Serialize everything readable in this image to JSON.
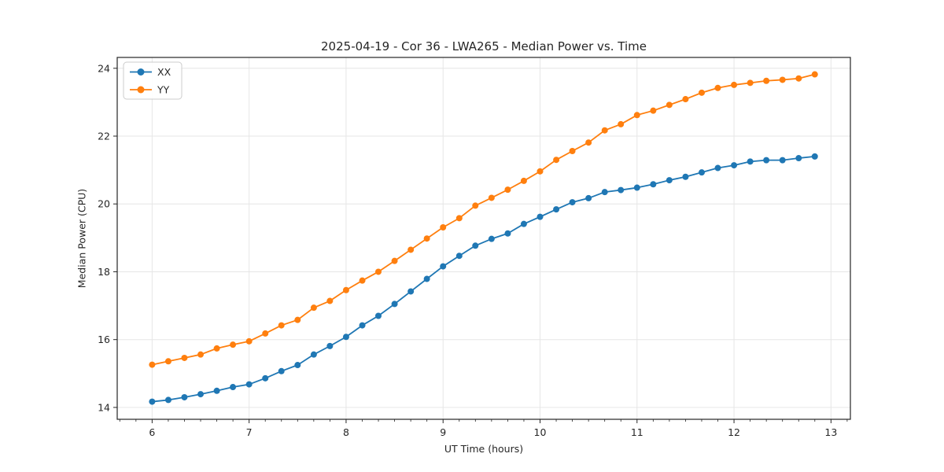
{
  "figure": {
    "title": "2025-04-19 - Cor 36 - LWA265 - Median Power vs. Time",
    "xlabel": "UT Time (hours)",
    "ylabel": "Median Power (CPU)"
  },
  "chart_data": {
    "type": "line",
    "title": "2025-04-19 - Cor 36 - LWA265 - Median Power vs. Time",
    "xlabel": "UT Time (hours)",
    "ylabel": "Median Power (CPU)",
    "marker": "circle",
    "grid": true,
    "legend_position": "upper-left",
    "background_color": "#ffffff",
    "grid_color": "#e6e6e6",
    "spine_color": "#262626",
    "text_color": "#262626",
    "legend_border_color": "#cccccc",
    "xlim": [
      5.64,
      13.2
    ],
    "ylim": [
      13.65,
      24.32
    ],
    "xticks": [
      6,
      7,
      8,
      9,
      10,
      11,
      12,
      13
    ],
    "yticks": [
      14,
      16,
      18,
      20,
      22,
      24
    ],
    "x_minor_tick_step": 0.16667,
    "x": [
      6.0,
      6.167,
      6.333,
      6.5,
      6.667,
      6.833,
      7.0,
      7.167,
      7.333,
      7.5,
      7.667,
      7.833,
      8.0,
      8.167,
      8.333,
      8.5,
      8.667,
      8.833,
      9.0,
      9.167,
      9.333,
      9.5,
      9.667,
      9.833,
      10.0,
      10.167,
      10.333,
      10.5,
      10.667,
      10.833,
      11.0,
      11.167,
      11.333,
      11.5,
      11.667,
      11.833,
      12.0,
      12.167,
      12.333,
      12.5,
      12.667,
      12.833
    ],
    "series": [
      {
        "name": "XX",
        "color": "#1f77b4",
        "values": [
          14.17,
          14.22,
          14.3,
          14.39,
          14.49,
          14.6,
          14.68,
          14.86,
          15.07,
          15.25,
          15.56,
          15.81,
          16.08,
          16.42,
          16.7,
          17.05,
          17.42,
          17.79,
          18.16,
          18.47,
          18.77,
          18.97,
          19.13,
          19.41,
          19.62,
          19.84,
          20.05,
          20.17,
          20.35,
          20.41,
          20.48,
          20.58,
          20.7,
          20.8,
          20.93,
          21.06,
          21.14,
          21.25,
          21.29,
          21.29,
          21.35,
          21.4
        ]
      },
      {
        "name": "YY",
        "color": "#ff7f0e",
        "values": [
          15.26,
          15.36,
          15.46,
          15.56,
          15.74,
          15.85,
          15.95,
          16.18,
          16.42,
          16.58,
          16.94,
          17.14,
          17.46,
          17.74,
          18.0,
          18.32,
          18.65,
          18.98,
          19.31,
          19.58,
          19.95,
          20.18,
          20.42,
          20.68,
          20.96,
          21.3,
          21.56,
          21.81,
          22.17,
          22.35,
          22.62,
          22.75,
          22.92,
          23.09,
          23.28,
          23.42,
          23.51,
          23.57,
          23.63,
          23.66,
          23.7,
          23.82
        ]
      }
    ]
  }
}
